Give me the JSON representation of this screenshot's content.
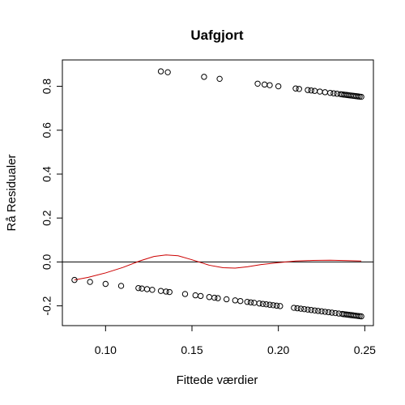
{
  "chart_data": {
    "type": "scatter",
    "title": "Uafgjort",
    "xlabel": "Fittede værdier",
    "ylabel": "Rå Residualer",
    "xlim": [
      0.075,
      0.255
    ],
    "ylim": [
      -0.29,
      0.92
    ],
    "xticks": [
      0.1,
      0.15,
      0.2,
      0.25
    ],
    "xtick_labels": [
      "0.10",
      "0.15",
      "0.20",
      "0.25"
    ],
    "yticks": [
      -0.2,
      0.0,
      0.2,
      0.4,
      0.6,
      0.8
    ],
    "ytick_labels": [
      "-0.2",
      "0.0",
      "0.2",
      "0.4",
      "0.6",
      "0.8"
    ],
    "grid": false,
    "reference_line": {
      "y": 0,
      "color": "#000000"
    },
    "points_color": "#000000",
    "smooth_color": "#cc0000",
    "series": [
      {
        "x": [
          0.132,
          0.136,
          0.157,
          0.166,
          0.188,
          0.192,
          0.195,
          0.2,
          0.21,
          0.212,
          0.217,
          0.219,
          0.221,
          0.224,
          0.227,
          0.23,
          0.232,
          0.234,
          0.236,
          0.237,
          0.238,
          0.239,
          0.24,
          0.241,
          0.242,
          0.243,
          0.244,
          0.245,
          0.246,
          0.247,
          0.248
        ],
        "y": [
          0.868,
          0.864,
          0.843,
          0.834,
          0.812,
          0.808,
          0.805,
          0.8,
          0.79,
          0.788,
          0.783,
          0.781,
          0.779,
          0.776,
          0.773,
          0.77,
          0.768,
          0.766,
          0.764,
          0.763,
          0.762,
          0.761,
          0.76,
          0.759,
          0.758,
          0.757,
          0.756,
          0.755,
          0.754,
          0.753,
          0.752
        ]
      },
      {
        "x": [
          0.082,
          0.091,
          0.1,
          0.109,
          0.119,
          0.121,
          0.124,
          0.127,
          0.132,
          0.135,
          0.137,
          0.146,
          0.152,
          0.155,
          0.16,
          0.163,
          0.165,
          0.17,
          0.175,
          0.178,
          0.182,
          0.184,
          0.186,
          0.189,
          0.191,
          0.193,
          0.195,
          0.197,
          0.199,
          0.201,
          0.209,
          0.211,
          0.213,
          0.215,
          0.217,
          0.219,
          0.221,
          0.223,
          0.225,
          0.227,
          0.229,
          0.231,
          0.233,
          0.235,
          0.237,
          0.238,
          0.239,
          0.24,
          0.241,
          0.242,
          0.243,
          0.244,
          0.245,
          0.246,
          0.247,
          0.248
        ],
        "y": [
          -0.082,
          -0.091,
          -0.1,
          -0.109,
          -0.119,
          -0.121,
          -0.124,
          -0.127,
          -0.132,
          -0.135,
          -0.137,
          -0.146,
          -0.152,
          -0.155,
          -0.16,
          -0.163,
          -0.165,
          -0.17,
          -0.175,
          -0.178,
          -0.182,
          -0.184,
          -0.186,
          -0.189,
          -0.191,
          -0.193,
          -0.195,
          -0.197,
          -0.199,
          -0.201,
          -0.209,
          -0.211,
          -0.213,
          -0.215,
          -0.217,
          -0.219,
          -0.221,
          -0.223,
          -0.225,
          -0.227,
          -0.229,
          -0.231,
          -0.233,
          -0.235,
          -0.237,
          -0.238,
          -0.239,
          -0.24,
          -0.241,
          -0.242,
          -0.243,
          -0.244,
          -0.245,
          -0.246,
          -0.247,
          -0.248
        ]
      }
    ],
    "smooth_line": {
      "x": [
        0.082,
        0.09,
        0.1,
        0.11,
        0.12,
        0.128,
        0.135,
        0.142,
        0.15,
        0.16,
        0.168,
        0.175,
        0.182,
        0.19,
        0.2,
        0.21,
        0.22,
        0.23,
        0.24,
        0.248
      ],
      "y": [
        -0.082,
        -0.07,
        -0.05,
        -0.025,
        0.005,
        0.025,
        0.032,
        0.028,
        0.01,
        -0.015,
        -0.026,
        -0.028,
        -0.022,
        -0.012,
        -0.003,
        0.004,
        0.007,
        0.008,
        0.006,
        0.004
      ]
    }
  }
}
